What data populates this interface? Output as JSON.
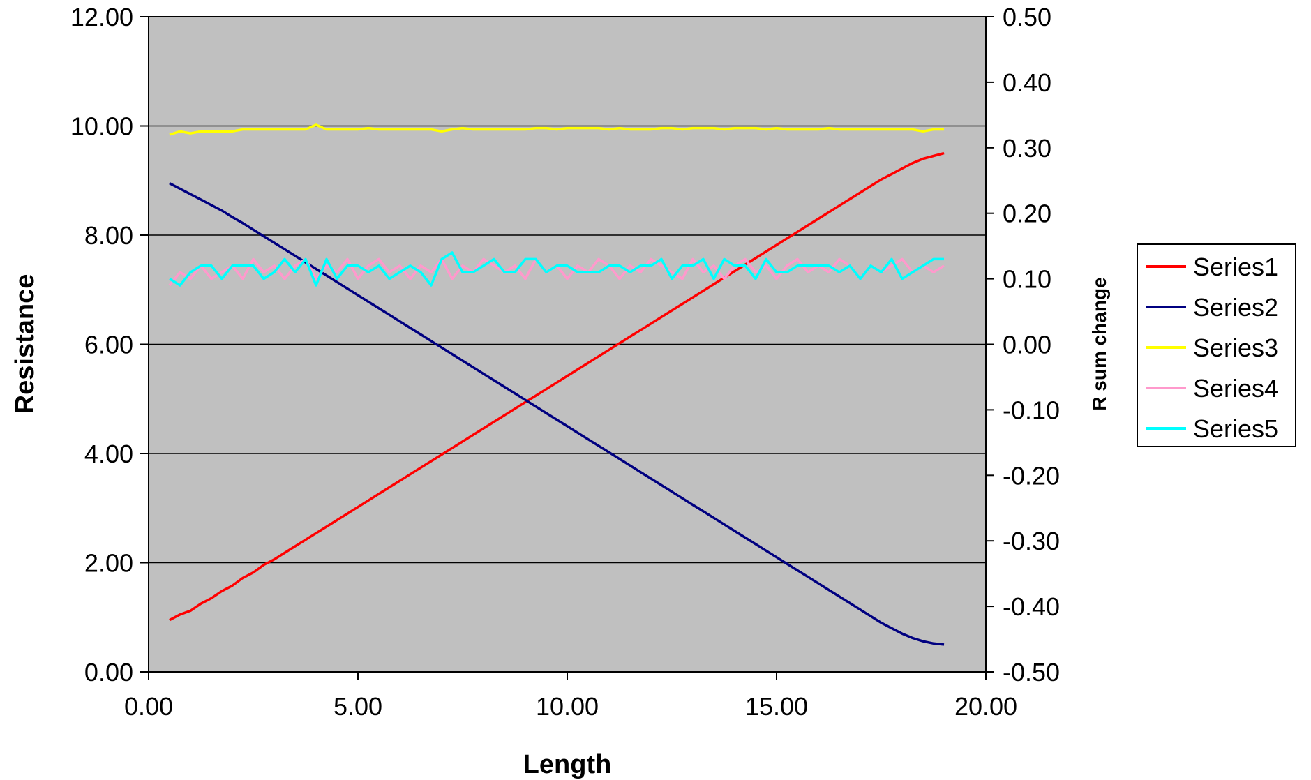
{
  "chart_data": {
    "type": "line",
    "xlabel": "Length",
    "ylabel": "Resistance",
    "y2label": "R sum change",
    "xlim": [
      0,
      20
    ],
    "ylim": [
      0,
      12
    ],
    "y2lim": [
      -0.5,
      0.5
    ],
    "x_ticks": [
      "0.00",
      "5.00",
      "10.00",
      "15.00",
      "20.00"
    ],
    "y_ticks": [
      "0.00",
      "2.00",
      "4.00",
      "6.00",
      "8.00",
      "10.00",
      "12.00"
    ],
    "y2_ticks": [
      "-0.50",
      "-0.40",
      "-0.30",
      "-0.20",
      "-0.10",
      "0.00",
      "0.10",
      "0.20",
      "0.30",
      "0.40",
      "0.50"
    ],
    "grid": "horizontal",
    "legend_position": "right",
    "plot_background": "#c0c0c0",
    "x": [
      0.5,
      0.75,
      1.0,
      1.25,
      1.5,
      1.75,
      2.0,
      2.25,
      2.5,
      2.75,
      3.0,
      3.25,
      3.5,
      3.75,
      4.0,
      4.25,
      4.5,
      4.75,
      5.0,
      5.25,
      5.5,
      5.75,
      6.0,
      6.25,
      6.5,
      6.75,
      7.0,
      7.25,
      7.5,
      7.75,
      8.0,
      8.25,
      8.5,
      8.75,
      9.0,
      9.25,
      9.5,
      9.75,
      10.0,
      10.25,
      10.5,
      10.75,
      11.0,
      11.25,
      11.5,
      11.75,
      12.0,
      12.25,
      12.5,
      12.75,
      13.0,
      13.25,
      13.5,
      13.75,
      14.0,
      14.25,
      14.5,
      14.75,
      15.0,
      15.25,
      15.5,
      15.75,
      16.0,
      16.25,
      16.5,
      16.75,
      17.0,
      17.25,
      17.5,
      17.75,
      18.0,
      18.25,
      18.5,
      18.75,
      19.0
    ],
    "series": [
      {
        "name": "Series1",
        "axis": "left",
        "color": "#ff0000",
        "values": [
          0.95,
          1.05,
          1.12,
          1.25,
          1.35,
          1.48,
          1.58,
          1.72,
          1.82,
          1.96,
          2.06,
          2.18,
          2.3,
          2.42,
          2.54,
          2.66,
          2.78,
          2.9,
          3.02,
          3.14,
          3.26,
          3.38,
          3.5,
          3.62,
          3.74,
          3.86,
          3.98,
          4.1,
          4.22,
          4.34,
          4.46,
          4.58,
          4.7,
          4.82,
          4.94,
          5.06,
          5.18,
          5.3,
          5.42,
          5.54,
          5.66,
          5.78,
          5.9,
          6.02,
          6.14,
          6.26,
          6.38,
          6.5,
          6.62,
          6.74,
          6.86,
          6.98,
          7.1,
          7.22,
          7.34,
          7.46,
          7.58,
          7.7,
          7.82,
          7.94,
          8.06,
          8.18,
          8.3,
          8.42,
          8.54,
          8.66,
          8.78,
          8.9,
          9.02,
          9.12,
          9.22,
          9.32,
          9.4,
          9.45,
          9.5
        ]
      },
      {
        "name": "Series2",
        "axis": "left",
        "color": "#000080",
        "values": [
          8.95,
          8.85,
          8.75,
          8.65,
          8.55,
          8.45,
          8.33,
          8.22,
          8.1,
          7.98,
          7.86,
          7.74,
          7.62,
          7.5,
          7.38,
          7.26,
          7.14,
          7.02,
          6.9,
          6.78,
          6.66,
          6.54,
          6.42,
          6.3,
          6.18,
          6.06,
          5.94,
          5.82,
          5.7,
          5.58,
          5.46,
          5.34,
          5.22,
          5.1,
          4.98,
          4.86,
          4.74,
          4.62,
          4.5,
          4.38,
          4.26,
          4.14,
          4.02,
          3.9,
          3.78,
          3.66,
          3.54,
          3.42,
          3.3,
          3.18,
          3.06,
          2.94,
          2.82,
          2.7,
          2.58,
          2.46,
          2.34,
          2.22,
          2.1,
          1.98,
          1.86,
          1.74,
          1.62,
          1.5,
          1.38,
          1.26,
          1.14,
          1.02,
          0.9,
          0.8,
          0.7,
          0.62,
          0.56,
          0.52,
          0.5
        ]
      },
      {
        "name": "Series3",
        "axis": "right",
        "color": "#ffff00",
        "values": [
          0.32,
          0.325,
          0.322,
          0.325,
          0.325,
          0.325,
          0.325,
          0.328,
          0.328,
          0.328,
          0.328,
          0.328,
          0.328,
          0.328,
          0.335,
          0.328,
          0.328,
          0.328,
          0.328,
          0.33,
          0.328,
          0.328,
          0.328,
          0.328,
          0.328,
          0.328,
          0.325,
          0.328,
          0.33,
          0.328,
          0.328,
          0.328,
          0.328,
          0.328,
          0.328,
          0.33,
          0.33,
          0.328,
          0.33,
          0.33,
          0.33,
          0.33,
          0.328,
          0.33,
          0.328,
          0.328,
          0.328,
          0.33,
          0.33,
          0.328,
          0.33,
          0.33,
          0.33,
          0.328,
          0.33,
          0.33,
          0.33,
          0.328,
          0.33,
          0.328,
          0.328,
          0.328,
          0.328,
          0.33,
          0.328,
          0.328,
          0.328,
          0.328,
          0.328,
          0.328,
          0.328,
          0.328,
          0.325,
          0.328,
          0.328
        ]
      },
      {
        "name": "Series4",
        "axis": "right",
        "color": "#ff99cc",
        "values": [
          0.09,
          0.11,
          0.1,
          0.12,
          0.1,
          0.11,
          0.12,
          0.1,
          0.13,
          0.11,
          0.12,
          0.1,
          0.12,
          0.13,
          0.1,
          0.12,
          0.11,
          0.13,
          0.1,
          0.12,
          0.13,
          0.11,
          0.12,
          0.1,
          0.12,
          0.11,
          0.13,
          0.1,
          0.12,
          0.11,
          0.13,
          0.12,
          0.11,
          0.12,
          0.1,
          0.13,
          0.11,
          0.12,
          0.1,
          0.12,
          0.11,
          0.13,
          0.12,
          0.1,
          0.12,
          0.11,
          0.13,
          0.12,
          0.11,
          0.1,
          0.13,
          0.11,
          0.12,
          0.1,
          0.12,
          0.13,
          0.11,
          0.12,
          0.1,
          0.12,
          0.13,
          0.11,
          0.12,
          0.11,
          0.13,
          0.12,
          0.1,
          0.12,
          0.11,
          0.12,
          0.13,
          0.11,
          0.12,
          0.11,
          0.12
        ]
      },
      {
        "name": "Series5",
        "axis": "right",
        "color": "#00ffff",
        "values": [
          0.1,
          0.09,
          0.11,
          0.12,
          0.12,
          0.1,
          0.12,
          0.12,
          0.12,
          0.1,
          0.11,
          0.13,
          0.11,
          0.13,
          0.09,
          0.13,
          0.1,
          0.12,
          0.12,
          0.11,
          0.12,
          0.1,
          0.11,
          0.12,
          0.11,
          0.09,
          0.13,
          0.14,
          0.11,
          0.11,
          0.12,
          0.13,
          0.11,
          0.11,
          0.13,
          0.13,
          0.11,
          0.12,
          0.12,
          0.11,
          0.11,
          0.11,
          0.12,
          0.12,
          0.11,
          0.12,
          0.12,
          0.13,
          0.1,
          0.12,
          0.12,
          0.13,
          0.1,
          0.13,
          0.12,
          0.12,
          0.1,
          0.13,
          0.11,
          0.11,
          0.12,
          0.12,
          0.12,
          0.12,
          0.11,
          0.12,
          0.1,
          0.12,
          0.11,
          0.13,
          0.1,
          0.11,
          0.12,
          0.13,
          0.13
        ]
      }
    ]
  }
}
